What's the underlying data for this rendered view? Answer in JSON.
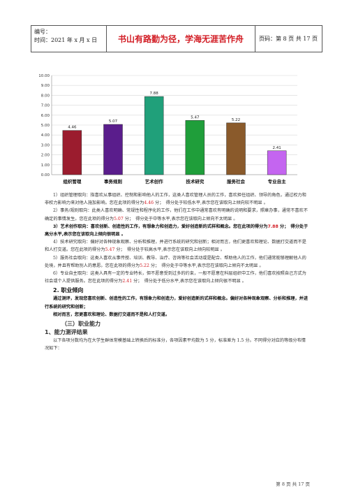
{
  "header": {
    "code_label": "编号：",
    "time_label": "时间：2021 年 x 月 x 日",
    "motto": "书山有路勤为径，学海无涯苦作舟",
    "page_label": "页码：第 8 页 共 17 页"
  },
  "chart_data": {
    "type": "bar",
    "categories": [
      "组织管理",
      "事务规则",
      "艺术创作",
      "技术研究",
      "服务社会",
      "专业自主"
    ],
    "values": [
      4.46,
      5.07,
      7.88,
      5.47,
      5.22,
      2.41
    ],
    "value_labels": [
      "4.46",
      "5.07",
      "7.88",
      "5.47",
      "5.22",
      "2.41"
    ],
    "colors": [
      "#9b1c2e",
      "#5a1d8c",
      "#20a07a",
      "#1f9e3a",
      "#8a5a2b",
      "#c465f0"
    ],
    "ylim": [
      0,
      10
    ],
    "yticks": [
      "0.00",
      "1.00",
      "2.00",
      "3.00",
      "4.00",
      "5.00",
      "6.00",
      "7.00",
      "8.00",
      "9.00",
      "10.00"
    ],
    "grid": true
  },
  "body": {
    "p1": "1）组织管理取向：指喜欢从事组织、控制和影响他人的工作，这类人喜欢管理人员的工作，喜欢担任组织、领导的角色，通过权力和非权力影响力来对他人施加影响。您在此项的得分为",
    "p1_score": "4.46",
    "p1_end": " 分；　得分处于较低水平,表示您在该取向上倾向较不明显 。",
    "p2": "2）事务/规则取向：此类人喜欢明确、常规性和程序化的工作，他们在工作中通常喜欢有明确的说明和要求，照章办事，通常不喜欢不确定的事情发生。您在此项的得分为",
    "p2_score": "5.07",
    "p2_end": " 分；　得分处于中等水平,表示您在该取向上倾向不太明显 。",
    "p3": "3）艺术创作取向：喜欢创新、创造性的工作，有想象力和创造力，爱好创造新的式样和概念。您在此项的得分为",
    "p3_score": "7.88",
    "p3_end": " 分；　得分处于高分水平,表示您在该取向上倾向很明显 。",
    "p4": "4）技术研究取向：偏好对各种现象观察、分析和推理，并进行系统的研究和创新；相对而言，他们更喜欢和理论、数据打交道而不是和人打交道。您在此项的得分为",
    "p4_score": "5.47",
    "p4_end": " 分；　得分处于较高水平,表示您在该取向上倾向较明显 。",
    "p5": "5）服务社会取向：这类人喜欢从事传授、培训、教导、治疗、咨询等社会活动或是配合、帮助他人的工作，他们通常能够理解他人的处境，并且有帮助别人的意愿。您在此项的得分为",
    "p5_score": "5.22",
    "p5_end": " 分；　得分处于中等水平,表示您在该取向上倾向不太明显 。",
    "p6": "6）专业自主取向：这类人具有一定的专业特长，但不愿意受到过多的约束，一般不愿意在科层组织中工作，他们喜欢按照自己方式为社会或个人提供服务。您在此项的得分为",
    "p6_score": "2.41",
    "p6_end": " 分；　得分处于低分水平,表示您在该取向上倾向很不明显 。",
    "h_career": "2. 职业倾向",
    "career1": "通过测评，发现您喜欢创新、创造性的工作，有想象力和创造力，爱好创造新的式样和概念。偏好对各种现象观察、分析和推理，并进行系统的研究和创新；",
    "career2": "相对而言，您更喜欢和理论、数据打交道而不是和人打交道。",
    "h_ability": "（三）职业能力",
    "h_ability_result": "1、能力测评结果",
    "ability_desc": "以下各项分数均为在大学生群体常模基础上转换后的标准分，各项因素平均数为 5 分，标准差为 1.5 分。不同得分对应的等级分布情况如下："
  },
  "footer": {
    "page": "第 8 页 共 17 页"
  }
}
